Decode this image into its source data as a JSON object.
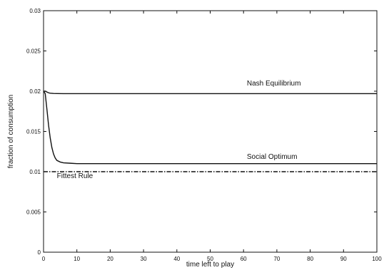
{
  "chart_data": {
    "type": "line",
    "title": "",
    "xlabel": "time left to play",
    "ylabel": "fraction of consumption",
    "xlim": [
      0,
      100
    ],
    "ylim": [
      0,
      0.03
    ],
    "grid": false,
    "x_ticks": [
      0,
      10,
      20,
      30,
      40,
      50,
      60,
      70,
      80,
      90,
      100
    ],
    "x_tick_labels": [
      "0",
      "10",
      "20",
      "30",
      "40",
      "50",
      "60",
      "70",
      "80",
      "90",
      "100"
    ],
    "y_ticks": [
      0,
      0.005,
      0.01,
      0.015,
      0.02,
      0.025,
      0.03
    ],
    "y_tick_labels": [
      "0",
      "0.005",
      "0.01",
      "0.015",
      "0.02",
      "0.025",
      "0.03"
    ],
    "series": [
      {
        "name": "Nash Equilibrium",
        "style": "solid",
        "color": "#111111",
        "x": [
          0,
          0.5,
          1,
          1.5,
          2,
          3,
          4,
          6,
          10,
          100
        ],
        "y": [
          0.02,
          0.02,
          0.0199,
          0.0198,
          0.01975,
          0.01972,
          0.01971,
          0.0197,
          0.0197,
          0.0197
        ]
      },
      {
        "name": "Social Optimum",
        "style": "solid",
        "color": "#111111",
        "x": [
          0,
          0.5,
          1,
          1.5,
          2,
          2.5,
          3,
          3.5,
          4,
          5,
          6,
          8,
          10,
          100
        ],
        "y": [
          0.02,
          0.0197,
          0.0178,
          0.0158,
          0.0142,
          0.013,
          0.0122,
          0.0117,
          0.0114,
          0.0112,
          0.0111,
          0.01105,
          0.011,
          0.011
        ]
      },
      {
        "name": "Fittest Rule",
        "style": "dashdot",
        "color": "#111111",
        "x": [
          0,
          100
        ],
        "y": [
          0.01,
          0.01
        ]
      }
    ],
    "annotations": [
      {
        "text": "Nash Equilibrium",
        "x": 61,
        "y": 0.0207
      },
      {
        "text": "Social Optimum",
        "x": 61,
        "y": 0.0116
      },
      {
        "text": "Fittest Rule",
        "x": 4,
        "y": 0.0092
      }
    ]
  }
}
